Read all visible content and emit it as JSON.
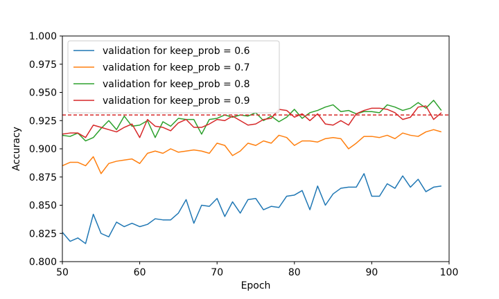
{
  "chart_data": {
    "type": "line",
    "xlabel": "Epoch",
    "ylabel": "Accuracy",
    "xlim": [
      50,
      100
    ],
    "ylim": [
      0.8,
      1.0
    ],
    "xticks": [
      50,
      60,
      70,
      80,
      90,
      100
    ],
    "yticks": [
      0.8,
      0.825,
      0.85,
      0.875,
      0.9,
      0.925,
      0.95,
      0.975,
      1.0
    ],
    "xtick_labels": [
      "50",
      "60",
      "70",
      "80",
      "90",
      "100"
    ],
    "ytick_labels": [
      "0.800",
      "0.825",
      "0.850",
      "0.875",
      "0.900",
      "0.925",
      "0.950",
      "0.975",
      "1.000"
    ],
    "grid": false,
    "legend_position": "top-left",
    "x": [
      50,
      51,
      52,
      53,
      54,
      55,
      56,
      57,
      58,
      59,
      60,
      61,
      62,
      63,
      64,
      65,
      66,
      67,
      68,
      69,
      70,
      71,
      72,
      73,
      74,
      75,
      76,
      77,
      78,
      79,
      80,
      81,
      82,
      83,
      84,
      85,
      86,
      87,
      88,
      89,
      90,
      91,
      92,
      93,
      94,
      95,
      96,
      97,
      98,
      99
    ],
    "series": [
      {
        "name": "validation for keep_prob = 0.6",
        "color": "#1f77b4",
        "values": [
          0.826,
          0.818,
          0.821,
          0.816,
          0.842,
          0.825,
          0.822,
          0.835,
          0.831,
          0.834,
          0.831,
          0.833,
          0.838,
          0.837,
          0.837,
          0.843,
          0.855,
          0.834,
          0.85,
          0.849,
          0.856,
          0.84,
          0.853,
          0.843,
          0.855,
          0.856,
          0.846,
          0.849,
          0.848,
          0.858,
          0.859,
          0.863,
          0.846,
          0.867,
          0.85,
          0.86,
          0.865,
          0.866,
          0.866,
          0.878,
          0.858,
          0.858,
          0.869,
          0.865,
          0.876,
          0.866,
          0.873,
          0.862,
          0.866,
          0.867
        ]
      },
      {
        "name": "validation for keep_prob = 0.7",
        "color": "#ff7f0e",
        "values": [
          0.885,
          0.888,
          0.888,
          0.885,
          0.893,
          0.878,
          0.887,
          0.889,
          0.89,
          0.891,
          0.887,
          0.896,
          0.898,
          0.896,
          0.9,
          0.897,
          0.898,
          0.899,
          0.898,
          0.896,
          0.905,
          0.903,
          0.894,
          0.898,
          0.905,
          0.903,
          0.907,
          0.905,
          0.912,
          0.91,
          0.903,
          0.907,
          0.907,
          0.906,
          0.909,
          0.91,
          0.909,
          0.9,
          0.905,
          0.911,
          0.911,
          0.91,
          0.912,
          0.909,
          0.914,
          0.912,
          0.911,
          0.915,
          0.917,
          0.915
        ]
      },
      {
        "name": "validation for keep_prob = 0.8",
        "color": "#2ca02c",
        "values": [
          0.912,
          0.911,
          0.914,
          0.907,
          0.91,
          0.918,
          0.925,
          0.917,
          0.929,
          0.92,
          0.921,
          0.925,
          0.91,
          0.924,
          0.92,
          0.927,
          0.926,
          0.926,
          0.913,
          0.926,
          0.927,
          0.93,
          0.928,
          0.93,
          0.929,
          0.932,
          0.925,
          0.929,
          0.924,
          0.928,
          0.935,
          0.927,
          0.932,
          0.934,
          0.937,
          0.939,
          0.933,
          0.934,
          0.931,
          0.933,
          0.933,
          0.932,
          0.939,
          0.937,
          0.934,
          0.936,
          0.941,
          0.936,
          0.943,
          0.934
        ]
      },
      {
        "name": "validation for keep_prob = 0.9",
        "color": "#d62728",
        "values": [
          0.913,
          0.914,
          0.914,
          0.91,
          0.921,
          0.919,
          0.917,
          0.915,
          0.919,
          0.922,
          0.91,
          0.926,
          0.92,
          0.919,
          0.916,
          0.923,
          0.926,
          0.919,
          0.919,
          0.922,
          0.926,
          0.925,
          0.929,
          0.925,
          0.921,
          0.922,
          0.926,
          0.927,
          0.935,
          0.934,
          0.928,
          0.931,
          0.925,
          0.931,
          0.922,
          0.921,
          0.925,
          0.921,
          0.931,
          0.934,
          0.936,
          0.936,
          0.935,
          0.932,
          0.926,
          0.928,
          0.937,
          0.938,
          0.926,
          0.932
        ]
      }
    ],
    "reference_line": {
      "y": 0.93,
      "color": "#d62728",
      "style": "dashed"
    }
  }
}
